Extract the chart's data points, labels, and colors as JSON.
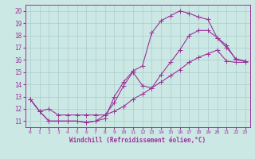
{
  "xlabel": "Windchill (Refroidissement éolien,°C)",
  "bg_color": "#cce8e4",
  "line_color": "#993399",
  "grid_color": "#aacccc",
  "xlim": [
    -0.5,
    23.5
  ],
  "ylim": [
    10.5,
    20.5
  ],
  "xticks": [
    0,
    1,
    2,
    3,
    4,
    5,
    6,
    7,
    8,
    9,
    10,
    11,
    12,
    13,
    14,
    15,
    16,
    17,
    18,
    19,
    20,
    21,
    22,
    23
  ],
  "yticks": [
    11,
    12,
    13,
    14,
    15,
    16,
    17,
    18,
    19,
    20
  ],
  "line1_x": [
    0,
    1,
    2,
    3,
    4,
    5,
    6,
    7,
    8,
    9,
    10,
    11,
    12,
    13,
    14,
    15,
    16,
    17,
    18,
    19,
    20,
    21,
    22,
    23
  ],
  "line1_y": [
    12.8,
    11.8,
    11.0,
    11.0,
    11.0,
    11.0,
    10.9,
    11.0,
    11.2,
    13.0,
    14.2,
    15.1,
    15.5,
    18.2,
    19.2,
    19.6,
    20.0,
    19.8,
    19.5,
    19.3,
    17.8,
    17.2,
    16.0,
    15.9
  ],
  "line2_x": [
    0,
    1,
    2,
    3,
    4,
    5,
    6,
    7,
    8,
    9,
    10,
    11,
    12,
    13,
    14,
    15,
    16,
    17,
    18,
    19,
    20,
    21,
    22,
    23
  ],
  "line2_y": [
    12.8,
    11.8,
    11.0,
    11.0,
    11.0,
    11.0,
    10.9,
    11.0,
    11.5,
    12.5,
    13.9,
    15.0,
    13.9,
    13.7,
    14.8,
    15.8,
    16.8,
    18.0,
    18.4,
    18.4,
    17.8,
    17.0,
    16.1,
    15.9
  ],
  "line3_x": [
    0,
    1,
    2,
    3,
    4,
    5,
    6,
    7,
    8,
    9,
    10,
    11,
    12,
    13,
    14,
    15,
    16,
    17,
    18,
    19,
    20,
    21,
    22,
    23
  ],
  "line3_y": [
    12.8,
    11.8,
    12.0,
    11.5,
    11.5,
    11.5,
    11.5,
    11.5,
    11.5,
    11.8,
    12.2,
    12.8,
    13.2,
    13.7,
    14.2,
    14.7,
    15.2,
    15.8,
    16.2,
    16.5,
    16.8,
    15.9,
    15.8,
    15.8
  ],
  "markersize": 2.5,
  "linewidth": 0.8
}
